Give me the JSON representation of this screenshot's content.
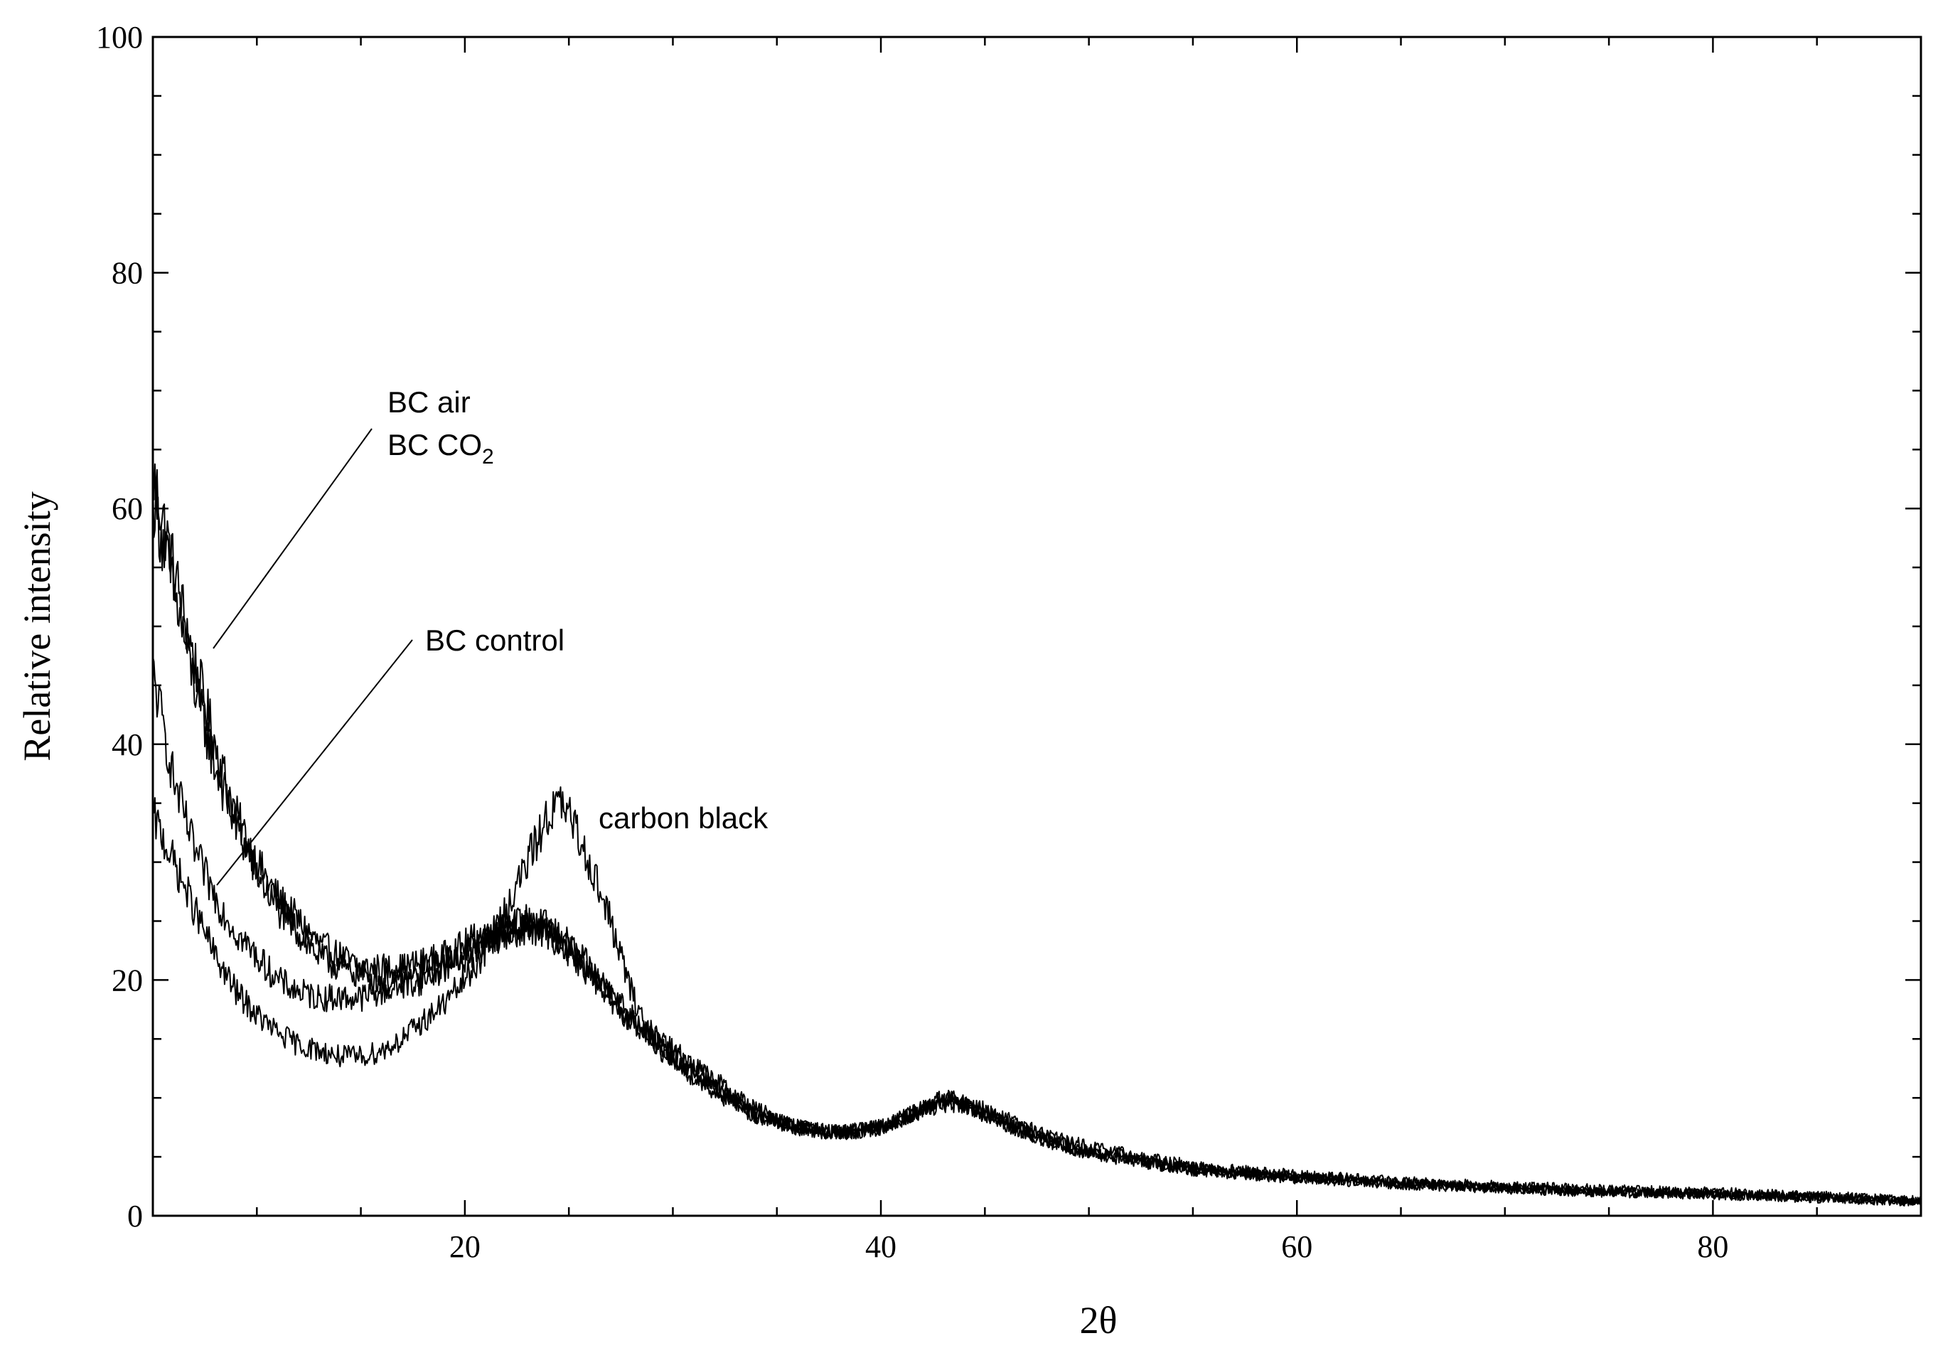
{
  "chart_data": {
    "type": "line",
    "title": "",
    "xlabel": "2θ",
    "ylabel": "Relative intensity",
    "xlim": [
      5,
      90
    ],
    "ylim": [
      0,
      100
    ],
    "x_ticks": [
      20,
      40,
      60,
      80
    ],
    "y_ticks": [
      0,
      20,
      40,
      60,
      80,
      100
    ],
    "x_tick_labels": [
      "20",
      "40",
      "60",
      "80"
    ],
    "y_tick_labels": [
      "0",
      "20",
      "40",
      "60",
      "80",
      "100"
    ],
    "x_minor_step": 5,
    "y_minor_step": 5,
    "grid": false,
    "legend": "none",
    "line_color": "#000000",
    "series": [
      {
        "name": "BC air",
        "x": [
          5,
          6,
          7,
          8,
          9,
          10,
          11,
          12,
          13,
          14,
          15,
          16,
          17,
          18,
          19,
          20,
          21,
          22,
          23,
          24,
          25,
          26,
          27,
          28,
          30,
          32,
          34,
          36,
          38,
          40,
          42,
          43,
          44,
          46,
          48,
          50,
          55,
          60,
          65,
          70,
          75,
          80,
          85,
          90
        ],
        "y": [
          63,
          55,
          47,
          40,
          34,
          30,
          27,
          25,
          23,
          22,
          21,
          21,
          21,
          21.5,
          22,
          23,
          24,
          24.5,
          25,
          24.5,
          23,
          21,
          19,
          17,
          14,
          11.5,
          9,
          7.5,
          7,
          7.5,
          9,
          10,
          9.5,
          8,
          6.5,
          5.5,
          4,
          3.3,
          2.8,
          2.4,
          2.1,
          1.9,
          1.6,
          1.3
        ]
      },
      {
        "name": "BC CO2",
        "x": [
          5,
          6,
          7,
          8,
          9,
          10,
          11,
          12,
          13,
          14,
          15,
          16,
          17,
          18,
          19,
          20,
          21,
          22,
          23,
          24,
          25,
          26,
          27,
          28,
          30,
          32,
          34,
          36,
          38,
          40,
          42,
          43,
          44,
          46,
          48,
          50,
          55,
          60,
          65,
          70,
          75,
          80,
          85,
          90
        ],
        "y": [
          61,
          53,
          45,
          38,
          33,
          29,
          26,
          24,
          22,
          21,
          20.5,
          20,
          20,
          20.5,
          21.5,
          22.5,
          23.5,
          24,
          24.5,
          24,
          22.5,
          20.5,
          18.5,
          16.5,
          13.5,
          11,
          8.5,
          7.5,
          7,
          7.5,
          9,
          9.7,
          9.3,
          7.8,
          6.3,
          5.3,
          3.9,
          3.2,
          2.7,
          2.3,
          2.0,
          1.8,
          1.5,
          1.2
        ]
      },
      {
        "name": "BC control",
        "x": [
          5,
          6,
          7,
          8,
          9,
          10,
          11,
          12,
          13,
          14,
          15,
          16,
          17,
          18,
          19,
          20,
          21,
          22,
          23,
          24,
          25,
          26,
          27,
          28,
          30,
          32,
          34,
          36,
          38,
          40,
          42,
          43,
          44,
          46,
          48,
          50,
          55,
          60,
          65,
          70,
          75,
          80,
          85,
          90
        ],
        "y": [
          46,
          37,
          31,
          27,
          24,
          22,
          20,
          19,
          18.5,
          18.5,
          18.5,
          19,
          19.5,
          20,
          21,
          22,
          23,
          24,
          24.5,
          24,
          22.5,
          20.5,
          18.5,
          16.5,
          13.5,
          11,
          8.5,
          7.5,
          7,
          7.5,
          9,
          9.5,
          9.2,
          7.8,
          6.3,
          5.3,
          3.9,
          3.2,
          2.7,
          2.3,
          2.0,
          1.8,
          1.5,
          1.2
        ]
      },
      {
        "name": "carbon black",
        "x": [
          5,
          6,
          7,
          8,
          9,
          10,
          11,
          12,
          13,
          14,
          15,
          16,
          17,
          18,
          19,
          20,
          21,
          22,
          23,
          24,
          24.5,
          25,
          26,
          27,
          28,
          29,
          30,
          32,
          34,
          36,
          38,
          40,
          42,
          43,
          44,
          46,
          48,
          50,
          55,
          60,
          65,
          70,
          75,
          80,
          85,
          90
        ],
        "y": [
          34,
          30,
          26,
          22,
          19,
          17,
          15.5,
          14.5,
          14,
          13.5,
          13.5,
          14,
          15,
          16.5,
          18,
          20,
          22.5,
          26,
          30,
          34,
          35,
          34,
          30,
          25,
          19,
          15,
          13,
          10.5,
          8.5,
          7.5,
          7,
          7.5,
          9,
          10,
          9.7,
          8.2,
          6.8,
          5.8,
          4.2,
          3.4,
          2.9,
          2.5,
          2.2,
          2.0,
          1.7,
          1.3
        ]
      }
    ],
    "annotations": {
      "bc_air": "BC air",
      "bc_co2_prefix": "BC CO",
      "bc_co2_subscript": "2",
      "bc_control": "BC control",
      "carbon_black": "carbon black"
    }
  }
}
